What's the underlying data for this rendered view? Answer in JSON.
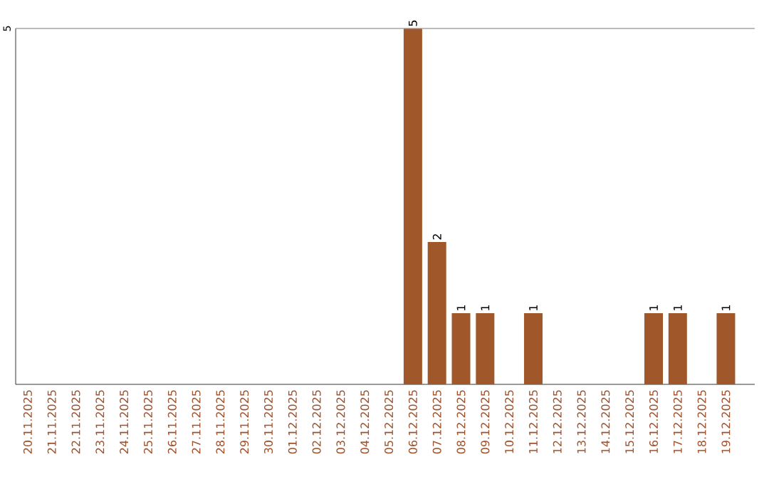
{
  "chart_data": {
    "type": "bar",
    "categories": [
      "20.11.2025",
      "21.11.2025",
      "22.11.2025",
      "23.11.2025",
      "24.11.2025",
      "25.11.2025",
      "26.11.2025",
      "27.11.2025",
      "28.11.2025",
      "29.11.2025",
      "30.11.2025",
      "01.12.2025",
      "02.12.2025",
      "03.12.2025",
      "04.12.2025",
      "05.12.2025",
      "06.12.2025",
      "07.12.2025",
      "08.12.2025",
      "09.12.2025",
      "10.12.2025",
      "11.12.2025",
      "12.12.2025",
      "13.12.2025",
      "14.12.2025",
      "15.12.2025",
      "16.12.2025",
      "17.12.2025",
      "18.12.2025",
      "19.12.2025"
    ],
    "values": [
      null,
      null,
      null,
      null,
      null,
      null,
      null,
      null,
      null,
      null,
      null,
      null,
      null,
      null,
      null,
      null,
      5,
      2,
      1,
      1,
      null,
      1,
      null,
      null,
      null,
      null,
      1,
      1,
      null,
      1
    ],
    "color": "#a0572a",
    "ylim": [
      0,
      5
    ],
    "yticks": [
      5
    ],
    "grid": "y",
    "data_labels": true
  }
}
